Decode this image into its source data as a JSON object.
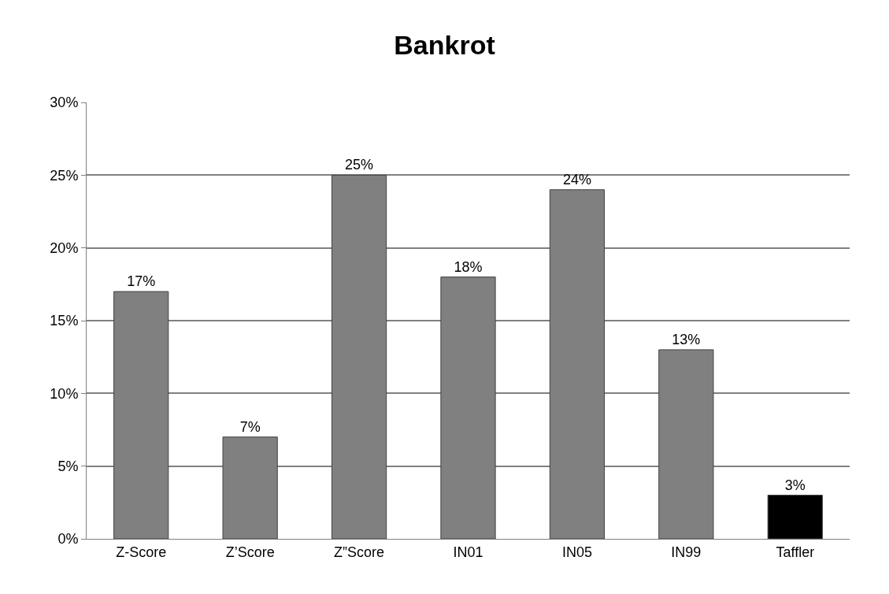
{
  "chart_data": {
    "type": "bar",
    "title": "Bankrot",
    "categories": [
      "Z-Score",
      "Z’Score",
      "Z”Score",
      "IN01",
      "IN05",
      "IN99",
      "Taffler"
    ],
    "values": [
      17,
      7,
      25,
      18,
      24,
      13,
      3
    ],
    "value_labels": [
      "17%",
      "7%",
      "25%",
      "18%",
      "24%",
      "13%",
      "3%"
    ],
    "colors": [
      "#808080",
      "#808080",
      "#808080",
      "#808080",
      "#808080",
      "#808080",
      "#000000"
    ],
    "ylim": [
      0,
      30
    ],
    "yticks": [
      {
        "value": 0,
        "label": "0%"
      },
      {
        "value": 5,
        "label": "5%"
      },
      {
        "value": 10,
        "label": "10%"
      },
      {
        "value": 15,
        "label": "15%"
      },
      {
        "value": 20,
        "label": "20%"
      },
      {
        "value": 25,
        "label": "25%"
      },
      {
        "value": 30,
        "label": "30%"
      }
    ],
    "grid": "y",
    "legend": false
  }
}
